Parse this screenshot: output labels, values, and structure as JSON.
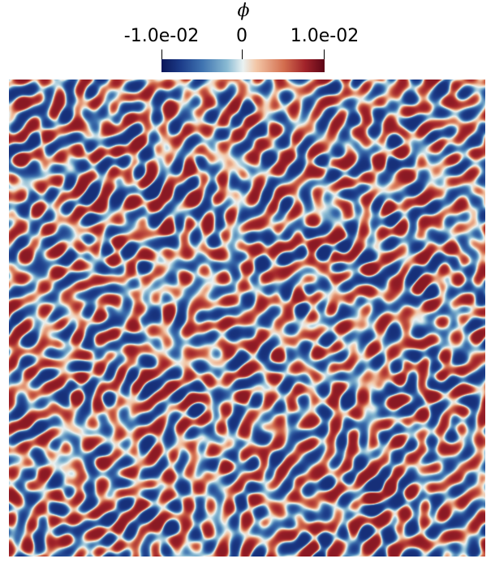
{
  "colorbar": {
    "title": "ϕ",
    "tick_min": "-1.0e-02",
    "tick_mid": "0",
    "tick_max": "1.0e-02",
    "colormap_stops": [
      "#0a1659",
      "#1d3d8a",
      "#3f73b0",
      "#88b9d2",
      "#eaf2f2",
      "#f3c7a7",
      "#d36e4f",
      "#a1232a",
      "#5c0617"
    ]
  },
  "field": {
    "description_colors": {
      "negative": "#1d3d8a",
      "neutral": "#eaf2f2",
      "positive": "#a1232a"
    }
  }
}
